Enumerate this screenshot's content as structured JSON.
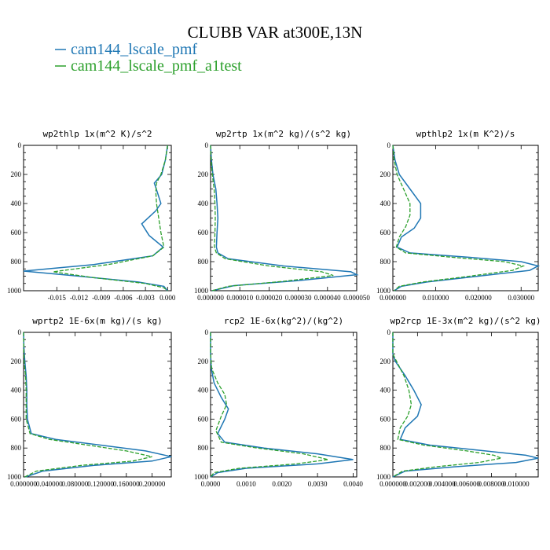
{
  "colors": {
    "series0": "#1f77b4",
    "series1": "#2ca02c"
  },
  "figure": {
    "title": "CLUBB VAR at300E,13N",
    "legend": [
      {
        "label": "cam144_lscale_pmf",
        "color": "#1f77b4",
        "style": "solid"
      },
      {
        "label": "cam144_lscale_pmf_a1test",
        "color": "#2ca02c",
        "style": "dashed"
      }
    ]
  },
  "chart_data": [
    {
      "type": "line",
      "title": "wp2thlp  1x(m^2 K)/s^2",
      "xlim": [
        -0.0195,
        0.0005
      ],
      "ylim": [
        1000,
        0
      ],
      "xticks": [
        -0.015,
        -0.012,
        -0.009,
        -0.006,
        -0.003,
        0.0
      ],
      "xticklabels": [
        "-0.015",
        "-0.012",
        "-0.009",
        "-0.006",
        "-0.003",
        "0.000"
      ],
      "yticks": [
        0,
        200,
        400,
        600,
        800,
        1000
      ],
      "series": [
        {
          "name": "cam144_lscale_pmf",
          "x": [
            0.0,
            -0.0003,
            -0.0008,
            -0.0018,
            -0.0014,
            -0.0009,
            -0.0016,
            -0.0035,
            -0.0025,
            -0.0006,
            -0.002,
            -0.01,
            -0.0195,
            -0.012,
            -0.004,
            -0.0005,
            0.0
          ],
          "y": [
            0,
            100,
            200,
            260,
            320,
            400,
            450,
            540,
            620,
            700,
            760,
            820,
            865,
            900,
            940,
            970,
            1000
          ]
        },
        {
          "name": "cam144_lscale_pmf_a1test",
          "x": [
            0.0,
            -0.0003,
            -0.0009,
            -0.0015,
            -0.0016,
            -0.0015,
            -0.0012,
            -0.0009,
            -0.0005,
            -0.002,
            -0.008,
            -0.0155,
            -0.01,
            -0.003,
            -0.0005,
            0.0
          ],
          "y": [
            0,
            100,
            200,
            260,
            320,
            400,
            500,
            600,
            700,
            760,
            820,
            870,
            910,
            950,
            980,
            1000
          ]
        }
      ]
    },
    {
      "type": "line",
      "title": "wp2rtp  1x(m^2 kg)/(s^2 kg)",
      "xlim": [
        0,
        5e-05
      ],
      "ylim": [
        1000,
        0
      ],
      "xticks": [
        0,
        1e-05,
        2e-05,
        3e-05,
        4e-05,
        5e-05
      ],
      "xticklabels": [
        "0.000000",
        "0.000010",
        "0.000020",
        "0.000030",
        "0.000040",
        "0.000050"
      ],
      "yticks": [
        0,
        200,
        400,
        600,
        800,
        1000
      ],
      "series": [
        {
          "name": "cam144_lscale_pmf",
          "x": [
            0.0,
            3e-07,
            8e-07,
            1.8e-06,
            2.2e-06,
            2.5e-06,
            2.2e-06,
            2e-06,
            2.5e-06,
            6e-06,
            2.5e-05,
            4.8e-05,
            5e-05,
            3e-05,
            8e-06,
            5e-07
          ],
          "y": [
            0,
            100,
            200,
            300,
            400,
            500,
            600,
            700,
            740,
            780,
            830,
            870,
            890,
            930,
            965,
            1000
          ]
        },
        {
          "name": "cam144_lscale_pmf_a1test",
          "x": [
            0.0,
            2e-07,
            6e-07,
            1.2e-06,
            1.5e-06,
            1.6e-06,
            1.5e-06,
            1.3e-06,
            2e-06,
            5e-06,
            2e-05,
            3.8e-05,
            4.2e-05,
            2.5e-05,
            6e-06,
            5e-07
          ],
          "y": [
            0,
            100,
            200,
            300,
            400,
            500,
            600,
            700,
            740,
            780,
            830,
            870,
            895,
            935,
            970,
            1000
          ]
        }
      ]
    },
    {
      "type": "line",
      "title": "wpthlp2  1x(m K^2)/s",
      "xlim": [
        0,
        0.034
      ],
      "ylim": [
        1000,
        0
      ],
      "xticks": [
        0,
        0.01,
        0.02,
        0.03
      ],
      "xticklabels": [
        "0.000000",
        "0.010000",
        "0.020000",
        "0.030000"
      ],
      "yticks": [
        0,
        200,
        400,
        600,
        800,
        1000
      ],
      "series": [
        {
          "name": "cam144_lscale_pmf",
          "x": [
            0.0,
            0.0005,
            0.0015,
            0.004,
            0.0065,
            0.0065,
            0.005,
            0.002,
            0.001,
            0.004,
            0.018,
            0.03,
            0.034,
            0.032,
            0.02,
            0.008,
            0.002,
            0.0003
          ],
          "y": [
            0,
            100,
            200,
            300,
            400,
            500,
            570,
            630,
            700,
            740,
            770,
            800,
            830,
            860,
            900,
            940,
            970,
            1000
          ]
        },
        {
          "name": "cam144_lscale_pmf_a1test",
          "x": [
            0.0,
            0.0003,
            0.001,
            0.0025,
            0.004,
            0.004,
            0.003,
            0.0015,
            0.0008,
            0.003,
            0.014,
            0.026,
            0.0305,
            0.028,
            0.018,
            0.007,
            0.0015,
            0.0003
          ],
          "y": [
            0,
            100,
            200,
            300,
            400,
            480,
            560,
            630,
            700,
            740,
            770,
            800,
            830,
            860,
            900,
            940,
            970,
            1000
          ]
        }
      ]
    },
    {
      "type": "line",
      "title": "wprtp2  1E-6x(m kg)/(s kg)",
      "xlim": [
        0,
        0.23
      ],
      "ylim": [
        1000,
        0
      ],
      "xticks": [
        0,
        0.04,
        0.08,
        0.12,
        0.16,
        0.2
      ],
      "xticklabels": [
        "0.000000",
        "0.040000",
        "0.080000",
        "0.120000",
        "0.160000",
        "0.200000"
      ],
      "yticks": [
        0,
        200,
        400,
        600,
        800,
        1000
      ],
      "series": [
        {
          "name": "cam144_lscale_pmf",
          "x": [
            0.0,
            0.0005,
            0.002,
            0.004,
            0.005,
            0.005,
            0.006,
            0.012,
            0.05,
            0.12,
            0.19,
            0.23,
            0.2,
            0.11,
            0.03,
            0.003
          ],
          "y": [
            0,
            100,
            200,
            300,
            400,
            500,
            600,
            700,
            740,
            780,
            820,
            860,
            890,
            920,
            960,
            1000
          ]
        },
        {
          "name": "cam144_lscale_pmf_a1test",
          "x": [
            0.0,
            0.0003,
            0.001,
            0.003,
            0.004,
            0.004,
            0.004,
            0.01,
            0.04,
            0.1,
            0.16,
            0.2,
            0.17,
            0.09,
            0.02,
            0.002
          ],
          "y": [
            0,
            100,
            200,
            300,
            400,
            500,
            600,
            700,
            740,
            780,
            820,
            860,
            890,
            920,
            960,
            1000
          ]
        }
      ]
    },
    {
      "type": "line",
      "title": "rcp2  1E-6x(kg^2)/(kg^2)",
      "xlim": [
        0,
        0.0041
      ],
      "ylim": [
        1000,
        0
      ],
      "xticks": [
        0,
        0.001,
        0.002,
        0.003,
        0.004
      ],
      "xticklabels": [
        "0.0000",
        "0.0010",
        "0.0020",
        "0.0030",
        "0.0040"
      ],
      "yticks": [
        0,
        200,
        400,
        600,
        800,
        1000
      ],
      "series": [
        {
          "name": "cam144_lscale_pmf",
          "x": [
            0.0,
            0.0,
            2e-05,
            0.0001,
            0.0003,
            0.0005,
            0.0004,
            0.0002,
            0.0004,
            0.0015,
            0.003,
            0.004,
            0.003,
            0.001,
            0.0002,
            0.0
          ],
          "y": [
            0,
            150,
            250,
            350,
            450,
            530,
            600,
            700,
            760,
            800,
            840,
            880,
            910,
            940,
            970,
            1000
          ]
        },
        {
          "name": "cam144_lscale_pmf_a1test",
          "x": [
            0.0,
            0.0,
            3e-05,
            0.0002,
            0.0004,
            0.00045,
            0.0003,
            0.00015,
            0.0003,
            0.0013,
            0.0026,
            0.0033,
            0.0024,
            0.0008,
            0.0001,
            0.0
          ],
          "y": [
            0,
            150,
            250,
            350,
            430,
            500,
            580,
            680,
            760,
            800,
            840,
            880,
            910,
            940,
            970,
            1000
          ]
        }
      ]
    },
    {
      "type": "line",
      "title": "wp2rcp  1E-3x(m^2 kg)/(s^2 kg)",
      "xlim": [
        0,
        0.0118
      ],
      "ylim": [
        1000,
        0
      ],
      "xticks": [
        0,
        0.002,
        0.004,
        0.006,
        0.008,
        0.01
      ],
      "xticklabels": [
        "0.000000",
        "0.002000",
        "0.004000",
        "0.006000",
        "0.008000",
        "0.010000"
      ],
      "yticks": [
        0,
        200,
        400,
        600,
        800,
        1000
      ],
      "series": [
        {
          "name": "cam144_lscale_pmf",
          "x": [
            0.0,
            0.0,
            0.0002,
            0.001,
            0.0017,
            0.0023,
            0.002,
            0.001,
            0.0006,
            0.003,
            0.0075,
            0.0108,
            0.0118,
            0.01,
            0.005,
            0.001,
            0.0
          ],
          "y": [
            0,
            150,
            200,
            300,
            400,
            500,
            580,
            660,
            740,
            780,
            820,
            850,
            870,
            900,
            930,
            960,
            1000
          ]
        },
        {
          "name": "cam144_lscale_pmf_a1test",
          "x": [
            0.0,
            0.0,
            0.0003,
            0.0009,
            0.0013,
            0.0015,
            0.0012,
            0.0006,
            0.0004,
            0.0025,
            0.006,
            0.0082,
            0.0088,
            0.007,
            0.0035,
            0.0008,
            0.0
          ],
          "y": [
            0,
            150,
            200,
            300,
            400,
            500,
            580,
            660,
            740,
            780,
            820,
            850,
            870,
            900,
            930,
            960,
            1000
          ]
        }
      ]
    }
  ]
}
